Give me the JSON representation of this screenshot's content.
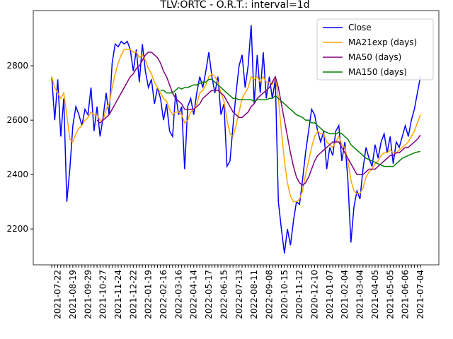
{
  "chart_data": {
    "type": "line",
    "title": "TLV:ORTC - O.R.T.: interval=1d",
    "categories": [
      null,
      null,
      "2021-07-22",
      null,
      null,
      null,
      null,
      "2021-08-19",
      null,
      null,
      null,
      null,
      "2021-09-29",
      null,
      null,
      null,
      null,
      "2021-10-27",
      null,
      null,
      null,
      null,
      "2021-11-24",
      null,
      null,
      null,
      null,
      "2021-12-22",
      null,
      null,
      null,
      null,
      "2022-01-19",
      null,
      null,
      null,
      null,
      "2022-02-16",
      null,
      null,
      null,
      null,
      "2022-03-16",
      null,
      null,
      null,
      null,
      "2022-04-14",
      null,
      null,
      null,
      null,
      "2022-05-17",
      null,
      null,
      null,
      null,
      "2022-06-15",
      null,
      null,
      null,
      null,
      "2022-07-13",
      null,
      null,
      null,
      null,
      "2022-08-11",
      null,
      null,
      null,
      null,
      "2022-09-08",
      null,
      null,
      null,
      null,
      "2020-10-15",
      null,
      null,
      null,
      null,
      "2020-11-12",
      null,
      null,
      null,
      null,
      "2020-12-10",
      null,
      null,
      null,
      null,
      "2021-01-07",
      null,
      null,
      null,
      null,
      "2021-02-04",
      null,
      null,
      null,
      null,
      "2021-03-04",
      null,
      null,
      null,
      null,
      "2021-04-05",
      null,
      null,
      null,
      null,
      "2021-05-05",
      null,
      null,
      null,
      null,
      "2021-06-06",
      null,
      null,
      null,
      null,
      "2021-07-04"
    ],
    "series": [
      {
        "name": "Close",
        "color": "#0000ff",
        "values": [
          2760,
          2600,
          2750,
          2540,
          2680,
          2300,
          2420,
          2580,
          2650,
          2620,
          2580,
          2640,
          2620,
          2720,
          2560,
          2650,
          2540,
          2610,
          2700,
          2620,
          2810,
          2880,
          2870,
          2890,
          2880,
          2890,
          2860,
          2780,
          2860,
          2740,
          2880,
          2780,
          2720,
          2750,
          2660,
          2720,
          2680,
          2600,
          2660,
          2560,
          2540,
          2700,
          2620,
          2650,
          2420,
          2650,
          2680,
          2620,
          2700,
          2760,
          2720,
          2780,
          2850,
          2760,
          2700,
          2760,
          2620,
          2660,
          2430,
          2450,
          2580,
          2700,
          2800,
          2840,
          2720,
          2800,
          2950,
          2660,
          2840,
          2700,
          2850,
          2680,
          2760,
          2680,
          2750,
          2300,
          2200,
          2110,
          2200,
          2140,
          2230,
          2300,
          2290,
          2380,
          2480,
          2560,
          2640,
          2620,
          2560,
          2520,
          2560,
          2420,
          2500,
          2470,
          2560,
          2580,
          2450,
          2520,
          2380,
          2150,
          2280,
          2340,
          2310,
          2420,
          2500,
          2460,
          2430,
          2510,
          2460,
          2520,
          2550,
          2480,
          2540,
          2440,
          2520,
          2500,
          2540,
          2580,
          2540,
          2600,
          2640,
          2700,
          2760
        ]
      },
      {
        "name": "MA21exp (days)",
        "color": "#ffa500",
        "values": [
          2760,
          2720,
          2700,
          2680,
          2700,
          2620,
          2530,
          2520,
          2550,
          2570,
          2580,
          2600,
          2610,
          2630,
          2620,
          2620,
          2600,
          2600,
          2640,
          2660,
          2720,
          2770,
          2810,
          2840,
          2860,
          2860,
          2860,
          2850,
          2850,
          2830,
          2840,
          2820,
          2790,
          2770,
          2740,
          2720,
          2700,
          2680,
          2670,
          2640,
          2620,
          2630,
          2630,
          2620,
          2590,
          2600,
          2630,
          2640,
          2660,
          2700,
          2710,
          2730,
          2760,
          2770,
          2760,
          2740,
          2700,
          2670,
          2600,
          2550,
          2540,
          2580,
          2630,
          2680,
          2700,
          2720,
          2760,
          2750,
          2760,
          2740,
          2760,
          2740,
          2740,
          2730,
          2760,
          2680,
          2560,
          2450,
          2370,
          2320,
          2300,
          2300,
          2310,
          2340,
          2400,
          2450,
          2500,
          2540,
          2560,
          2550,
          2550,
          2520,
          2510,
          2500,
          2520,
          2540,
          2510,
          2500,
          2450,
          2380,
          2340,
          2330,
          2330,
          2350,
          2390,
          2410,
          2420,
          2440,
          2450,
          2470,
          2480,
          2480,
          2490,
          2480,
          2480,
          2490,
          2500,
          2510,
          2520,
          2540,
          2560,
          2590,
          2620
        ]
      },
      {
        "name": "MA50 (days)",
        "color": "#800080",
        "values": [
          null,
          null,
          null,
          null,
          null,
          null,
          null,
          null,
          null,
          null,
          null,
          null,
          null,
          null,
          null,
          2600,
          2590,
          2600,
          2610,
          2620,
          2640,
          2660,
          2680,
          2700,
          2720,
          2740,
          2760,
          2770,
          2790,
          2800,
          2820,
          2840,
          2850,
          2850,
          2840,
          2830,
          2810,
          2780,
          2760,
          2730,
          2700,
          2680,
          2670,
          2660,
          2640,
          2640,
          2640,
          2640,
          2650,
          2660,
          2680,
          2690,
          2700,
          2710,
          2710,
          2710,
          2700,
          2690,
          2670,
          2650,
          2630,
          2620,
          2610,
          2610,
          2620,
          2630,
          2650,
          2660,
          2680,
          2690,
          2700,
          2710,
          2720,
          2740,
          2760,
          2720,
          2660,
          2600,
          2540,
          2480,
          2430,
          2390,
          2370,
          2360,
          2370,
          2390,
          2420,
          2450,
          2470,
          2480,
          2490,
          2500,
          2510,
          2520,
          2520,
          2520,
          2500,
          2480,
          2460,
          2440,
          2420,
          2400,
          2400,
          2400,
          2410,
          2420,
          2420,
          2420,
          2430,
          2440,
          2450,
          2460,
          2470,
          2470,
          2480,
          2480,
          2490,
          2500,
          2500,
          2510,
          2520,
          2530,
          2545
        ]
      },
      {
        "name": "MA150 (days)",
        "color": "#008000",
        "values": [
          null,
          null,
          null,
          null,
          null,
          null,
          null,
          null,
          null,
          null,
          null,
          null,
          null,
          null,
          null,
          null,
          null,
          null,
          null,
          null,
          null,
          null,
          null,
          null,
          null,
          null,
          null,
          null,
          null,
          null,
          null,
          null,
          null,
          null,
          null,
          null,
          2710,
          2710,
          2700,
          2700,
          2700,
          2710,
          2720,
          2715,
          2720,
          2720,
          2725,
          2730,
          2730,
          2735,
          2740,
          2740,
          2750,
          2750,
          2740,
          2730,
          2720,
          2710,
          2700,
          2690,
          2680,
          2680,
          2675,
          2675,
          2675,
          2675,
          2675,
          2670,
          2675,
          2675,
          2675,
          2675,
          2680,
          2680,
          2690,
          2680,
          2670,
          2660,
          2650,
          2640,
          2630,
          2620,
          2615,
          2610,
          2600,
          2600,
          2590,
          2590,
          2580,
          2570,
          2560,
          2555,
          2550,
          2550,
          2550,
          2555,
          2550,
          2540,
          2530,
          2510,
          2500,
          2490,
          2480,
          2470,
          2460,
          2455,
          2450,
          2445,
          2440,
          2435,
          2430,
          2430,
          2430,
          2430,
          2440,
          2450,
          2460,
          2465,
          2470,
          2475,
          2480,
          2483,
          2485
        ]
      }
    ],
    "ylim": [
      2068,
      3003
    ],
    "yticks": [
      2200,
      2400,
      2600,
      2800
    ],
    "grid": false,
    "legend": "upper right"
  }
}
